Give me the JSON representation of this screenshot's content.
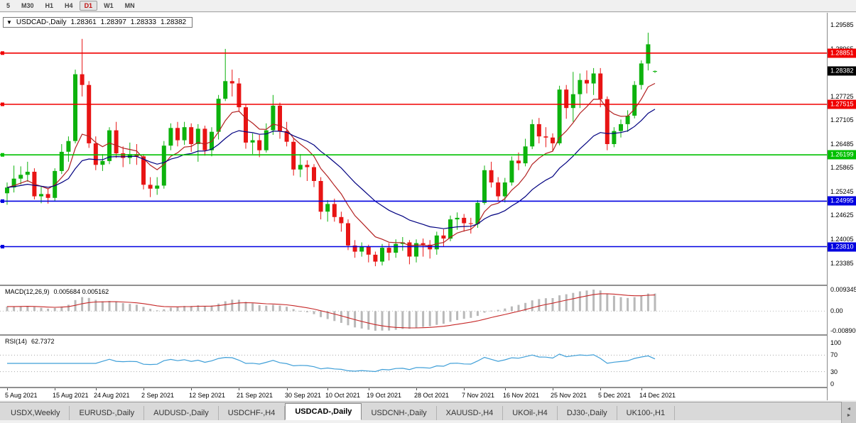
{
  "toolbar": {
    "timeframes": [
      {
        "label": "5",
        "active": false
      },
      {
        "label": "M30",
        "active": false
      },
      {
        "label": "H1",
        "active": false
      },
      {
        "label": "H4",
        "active": false
      },
      {
        "label": "D1",
        "active": true
      },
      {
        "label": "W1",
        "active": false
      },
      {
        "label": "MN",
        "active": false
      }
    ]
  },
  "chart": {
    "title": {
      "marker": "▼",
      "symbol": "USDCAD-,Daily",
      "open": "1.28361",
      "high": "1.28397",
      "low": "1.28333",
      "close": "1.28382"
    },
    "colors": {
      "up": "#0db20d",
      "down": "#e81414",
      "ma_fast": "#b22020",
      "ma_slow": "#000080",
      "macd_hist": "#b9b9b9",
      "macd_signal": "#c62828",
      "rsi": "#3f9fd8"
    },
    "price_axis": {
      "labels": [
        "1.29585",
        "1.28965",
        "1.28345",
        "1.27725",
        "1.27105",
        "1.26485",
        "1.25865",
        "1.25245",
        "1.24625",
        "1.24005",
        "1.23385"
      ]
    },
    "levels": [
      {
        "price": 1.28851,
        "label": "1.28851",
        "color": "#f00000",
        "role": "resistance-line"
      },
      {
        "price": 1.27515,
        "label": "1.27515",
        "color": "#f00000",
        "role": "resistance-line"
      },
      {
        "price": 1.26199,
        "label": "1.26199",
        "color": "#00c000",
        "role": "support-line"
      },
      {
        "price": 1.24995,
        "label": "1.24995",
        "color": "#0000e0",
        "role": "support-line"
      },
      {
        "price": 1.2381,
        "label": "1.23810",
        "color": "#0000e0",
        "role": "support-line"
      }
    ],
    "current_price": {
      "price": 1.28382,
      "label": "1.28382",
      "color": "#000000"
    }
  },
  "chart_data": {
    "type": "candlestick",
    "title": "USDCAD-,Daily",
    "ylim": [
      1.22821,
      1.299
    ],
    "x_tick_indices": [
      0,
      7,
      13,
      20,
      27,
      34,
      41,
      47,
      53,
      60,
      67,
      73,
      80,
      87,
      93
    ],
    "x_tick_labels": [
      "5 Aug 2021",
      "15 Aug 2021",
      "24 Aug 2021",
      "2 Sep 2021",
      "12 Sep 2021",
      "21 Sep 2021",
      "30 Sep 2021",
      "10 Oct 2021",
      "19 Oct 2021",
      "28 Oct 2021",
      "7 Nov 2021",
      "16 Nov 2021",
      "25 Nov 2021",
      "5 Dec 2021",
      "14 Dec 2021"
    ],
    "ohlc": [
      [
        1.252,
        1.2548,
        1.249,
        1.2535
      ],
      [
        1.2535,
        1.2592,
        1.2522,
        1.2558
      ],
      [
        1.2558,
        1.259,
        1.2543,
        1.2568
      ],
      [
        1.2568,
        1.2602,
        1.255,
        1.2576
      ],
      [
        1.2576,
        1.2585,
        1.2504,
        1.2512
      ],
      [
        1.2512,
        1.2538,
        1.2494,
        1.2518
      ],
      [
        1.2518,
        1.2532,
        1.2493,
        1.2508
      ],
      [
        1.2508,
        1.2585,
        1.25,
        1.2578
      ],
      [
        1.2578,
        1.2648,
        1.257,
        1.2628
      ],
      [
        1.2628,
        1.2668,
        1.2602,
        1.2656
      ],
      [
        1.2656,
        1.2842,
        1.265,
        1.283
      ],
      [
        1.283,
        1.2922,
        1.2772,
        1.2802
      ],
      [
        1.2802,
        1.2812,
        1.2638,
        1.265
      ],
      [
        1.265,
        1.2668,
        1.258,
        1.2594
      ],
      [
        1.2594,
        1.2622,
        1.2578,
        1.2604
      ],
      [
        1.2604,
        1.2692,
        1.2596,
        1.2684
      ],
      [
        1.2684,
        1.2706,
        1.2612,
        1.2624
      ],
      [
        1.2624,
        1.2642,
        1.2588,
        1.2612
      ],
      [
        1.2612,
        1.2652,
        1.2596,
        1.2622
      ],
      [
        1.2622,
        1.2648,
        1.2594,
        1.2616
      ],
      [
        1.2616,
        1.2622,
        1.253,
        1.2542
      ],
      [
        1.2542,
        1.2562,
        1.251,
        1.2532
      ],
      [
        1.2532,
        1.2562,
        1.2516,
        1.254
      ],
      [
        1.254,
        1.2656,
        1.2532,
        1.2644
      ],
      [
        1.2644,
        1.2702,
        1.2632,
        1.269
      ],
      [
        1.269,
        1.2706,
        1.2642,
        1.2658
      ],
      [
        1.2658,
        1.2706,
        1.2646,
        1.2692
      ],
      [
        1.2692,
        1.2702,
        1.2628,
        1.2648
      ],
      [
        1.2648,
        1.27,
        1.2602,
        1.2688
      ],
      [
        1.2688,
        1.2696,
        1.2618,
        1.2632
      ],
      [
        1.2632,
        1.2692,
        1.2616,
        1.268
      ],
      [
        1.268,
        1.2776,
        1.266,
        1.2766
      ],
      [
        1.2766,
        1.2896,
        1.276,
        1.2812
      ],
      [
        1.2812,
        1.2842,
        1.2772,
        1.2806
      ],
      [
        1.2806,
        1.282,
        1.2732,
        1.2744
      ],
      [
        1.2744,
        1.2752,
        1.2636,
        1.2652
      ],
      [
        1.2652,
        1.2676,
        1.2622,
        1.2658
      ],
      [
        1.2658,
        1.2672,
        1.2614,
        1.2632
      ],
      [
        1.2632,
        1.2702,
        1.2626,
        1.2684
      ],
      [
        1.2684,
        1.2776,
        1.2672,
        1.2748
      ],
      [
        1.2748,
        1.2756,
        1.2662,
        1.2682
      ],
      [
        1.2682,
        1.2706,
        1.2642,
        1.2654
      ],
      [
        1.2654,
        1.2662,
        1.2566,
        1.2582
      ],
      [
        1.2582,
        1.2622,
        1.2562,
        1.2594
      ],
      [
        1.2594,
        1.2606,
        1.2552,
        1.2588
      ],
      [
        1.2588,
        1.2596,
        1.2536,
        1.2552
      ],
      [
        1.2552,
        1.2562,
        1.2452,
        1.2472
      ],
      [
        1.2472,
        1.2502,
        1.2446,
        1.2492
      ],
      [
        1.2492,
        1.2506,
        1.2446,
        1.2458
      ],
      [
        1.2458,
        1.2472,
        1.242,
        1.2442
      ],
      [
        1.2442,
        1.2452,
        1.2372,
        1.2384
      ],
      [
        1.2384,
        1.2398,
        1.2352,
        1.2368
      ],
      [
        1.2368,
        1.2392,
        1.2355,
        1.238
      ],
      [
        1.238,
        1.2386,
        1.234,
        1.236
      ],
      [
        1.236,
        1.2368,
        1.233,
        1.2342
      ],
      [
        1.2342,
        1.2388,
        1.2332,
        1.2378
      ],
      [
        1.2378,
        1.239,
        1.2345,
        1.2365
      ],
      [
        1.2365,
        1.24,
        1.2352,
        1.2388
      ],
      [
        1.2388,
        1.2406,
        1.237,
        1.2392
      ],
      [
        1.2392,
        1.2398,
        1.2335,
        1.2355
      ],
      [
        1.2355,
        1.24,
        1.234,
        1.239
      ],
      [
        1.239,
        1.2402,
        1.2355,
        1.2386
      ],
      [
        1.2386,
        1.2398,
        1.235,
        1.2374
      ],
      [
        1.2374,
        1.242,
        1.236,
        1.241
      ],
      [
        1.241,
        1.2426,
        1.238,
        1.2402
      ],
      [
        1.2402,
        1.2462,
        1.2395,
        1.2452
      ],
      [
        1.2452,
        1.247,
        1.2425,
        1.2456
      ],
      [
        1.2456,
        1.2466,
        1.242,
        1.2442
      ],
      [
        1.2442,
        1.2456,
        1.2415,
        1.244
      ],
      [
        1.244,
        1.2502,
        1.243,
        1.2495
      ],
      [
        1.2495,
        1.2592,
        1.249,
        1.258
      ],
      [
        1.258,
        1.2602,
        1.2535,
        1.2548
      ],
      [
        1.2548,
        1.2562,
        1.25,
        1.2512
      ],
      [
        1.2512,
        1.256,
        1.2496,
        1.2548
      ],
      [
        1.2548,
        1.2616,
        1.254,
        1.2605
      ],
      [
        1.2605,
        1.2626,
        1.258,
        1.2598
      ],
      [
        1.2598,
        1.2662,
        1.259,
        1.2642
      ],
      [
        1.2642,
        1.2712,
        1.2635,
        1.27
      ],
      [
        1.27,
        1.2716,
        1.265,
        1.2668
      ],
      [
        1.2668,
        1.2692,
        1.264,
        1.2665
      ],
      [
        1.2665,
        1.2676,
        1.263,
        1.265
      ],
      [
        1.265,
        1.28,
        1.2645,
        1.279
      ],
      [
        1.279,
        1.2802,
        1.2714,
        1.2742
      ],
      [
        1.2742,
        1.2836,
        1.2706,
        1.2778
      ],
      [
        1.2778,
        1.2832,
        1.2742,
        1.2815
      ],
      [
        1.2815,
        1.284,
        1.278,
        1.2806
      ],
      [
        1.2806,
        1.2846,
        1.2776,
        1.2832
      ],
      [
        1.2832,
        1.2846,
        1.2744,
        1.2765
      ],
      [
        1.2765,
        1.2772,
        1.2632,
        1.2648
      ],
      [
        1.2648,
        1.2692,
        1.264,
        1.2682
      ],
      [
        1.2682,
        1.2712,
        1.2665,
        1.27
      ],
      [
        1.27,
        1.2736,
        1.268,
        1.2722
      ],
      [
        1.2722,
        1.2812,
        1.2715,
        1.2802
      ],
      [
        1.2802,
        1.2866,
        1.279,
        1.2858
      ],
      [
        1.2858,
        1.2938,
        1.284,
        1.2908
      ],
      [
        1.28361,
        1.28397,
        1.28333,
        1.28382
      ]
    ],
    "indicators": {
      "ma_fast_period": 8,
      "ma_slow_period": 20,
      "macd": {
        "label": "MACD(12,26,9)",
        "values_text": "0.005684 0.005162",
        "fast": 12,
        "slow": 26,
        "signal": 9,
        "axis_labels": [
          "0.009345",
          "0.00",
          "-0.008900"
        ]
      },
      "rsi": {
        "label": "RSI(14)",
        "value_text": "62.7372",
        "period": 14,
        "levels": [
          70,
          30
        ],
        "axis_labels": [
          "100",
          "70",
          "30",
          "0"
        ]
      }
    }
  },
  "tabs": {
    "items": [
      {
        "label": "USDX,Weekly",
        "active": false
      },
      {
        "label": "EURUSD-,Daily",
        "active": false
      },
      {
        "label": "AUDUSD-,Daily",
        "active": false
      },
      {
        "label": "USDCHF-,H4",
        "active": false
      },
      {
        "label": "USDCAD-,Daily",
        "active": true
      },
      {
        "label": "USDCNH-,Daily",
        "active": false
      },
      {
        "label": "XAUUSD-,H4",
        "active": false
      },
      {
        "label": "UKOil-,H4",
        "active": false
      },
      {
        "label": "DJ30-,Daily",
        "active": false
      },
      {
        "label": "UK100-,H1",
        "active": false
      }
    ],
    "scroll_left_icon": "◄",
    "scroll_right_icon": "►"
  }
}
